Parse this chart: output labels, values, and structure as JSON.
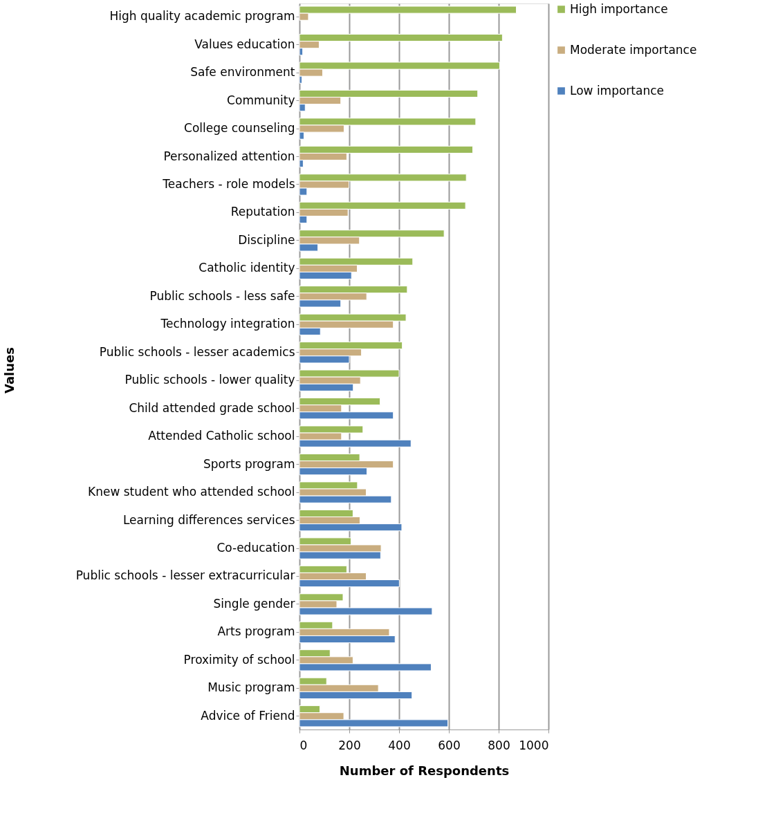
{
  "chart_data": {
    "type": "bar",
    "orientation": "horizontal",
    "xlabel": "Number of Respondents",
    "ylabel": "Values",
    "categories": [
      "High quality academic program",
      "Values education",
      "Safe environment",
      "Community",
      "College counseling",
      "Personalized attention",
      "Teachers - role models",
      "Reputation",
      "Discipline",
      "Catholic identity",
      "Public schools - less safe",
      "Technology integration",
      "Public schools - lesser academics",
      "Public schools - lower quality",
      "Child attended grade school",
      "Attended Catholic school",
      "Sports program",
      "Knew student who attended school",
      "Learning differences services",
      "Co-education",
      "Public schools - lesser extracurricular",
      "Single gender",
      "Arts program",
      "Proximity of school",
      "Music program",
      "Advice of Friend"
    ],
    "series": [
      {
        "name": "High importance",
        "color": "#9bbb59",
        "values": [
          871,
          815,
          804,
          716,
          708,
          696,
          670,
          667,
          581,
          455,
          433,
          428,
          413,
          400,
          324,
          255,
          242,
          233,
          215,
          207,
          190,
          175,
          133,
          123,
          109,
          82
        ]
      },
      {
        "name": "Moderate importance",
        "color": "#c9ad7f",
        "values": [
          36,
          79,
          93,
          166,
          179,
          190,
          199,
          195,
          241,
          232,
          270,
          377,
          249,
          245,
          169,
          169,
          377,
          268,
          243,
          328,
          268,
          150,
          361,
          215,
          317,
          178
        ]
      },
      {
        "name": "Low importance",
        "color": "#4f81bd",
        "values": [
          null,
          13,
          10,
          23,
          18,
          15,
          30,
          30,
          74,
          209,
          166,
          84,
          200,
          216,
          377,
          448,
          271,
          369,
          411,
          326,
          401,
          533,
          384,
          529,
          452,
          596
        ]
      }
    ],
    "xlim": [
      0,
      1000
    ],
    "xticks": [
      0,
      200,
      400,
      600,
      800,
      1000
    ],
    "grid": "x",
    "legend": "right"
  }
}
